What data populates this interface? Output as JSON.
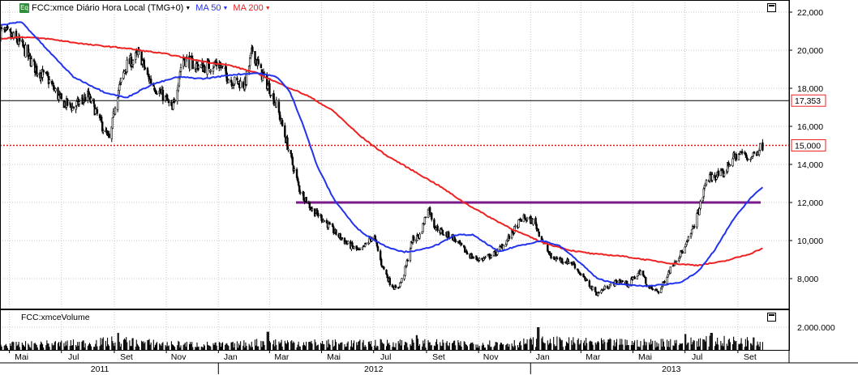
{
  "header": {
    "badge": "Eq",
    "instrument": "FCC:xmce Diário Hora Local (TMG+0)",
    "ma50_label": "MA 50",
    "ma200_label": "MA 200"
  },
  "volume_panel": {
    "title": "FCC:xmceVolume",
    "axis_label": "2.000.000"
  },
  "colors": {
    "price": "#000000",
    "up_candle": "#ffffff",
    "ma50": "#2233ee",
    "ma200": "#ee2222",
    "resistance_line": "#7a1a8a",
    "level_line": "#ee1111",
    "grid": "#c8c8c8",
    "last_price_label": "#ee2222"
  },
  "chart_data": [
    {
      "type": "candlestick",
      "title": "FCC:xmce Diário Hora Local (TMG+0)",
      "x_range": [
        "2011-04-20",
        "2013-10-31"
      ],
      "ylim": [
        6500,
        22500
      ],
      "y_ticks": [
        "8,000",
        "10,000",
        "12,000",
        "14,000",
        "16,000",
        "18,000",
        "20,000",
        "22,000"
      ],
      "x_month_ticks": [
        {
          "date": "2011-05-01",
          "label": "Mai"
        },
        {
          "date": "2011-07-01",
          "label": "Jul"
        },
        {
          "date": "2011-09-01",
          "label": "Set"
        },
        {
          "date": "2011-11-01",
          "label": "Nov"
        },
        {
          "date": "2012-01-01",
          "label": "Jan"
        },
        {
          "date": "2012-03-01",
          "label": "Mar"
        },
        {
          "date": "2012-05-01",
          "label": "Mai"
        },
        {
          "date": "2012-07-01",
          "label": "Jul"
        },
        {
          "date": "2012-09-01",
          "label": "Set"
        },
        {
          "date": "2012-11-01",
          "label": "Nov"
        },
        {
          "date": "2013-01-01",
          "label": "Jan"
        },
        {
          "date": "2013-03-01",
          "label": "Mar"
        },
        {
          "date": "2013-05-01",
          "label": "Mai"
        },
        {
          "date": "2013-07-01",
          "label": "Jul"
        },
        {
          "date": "2013-09-01",
          "label": "Set"
        }
      ],
      "x_year_labels": [
        {
          "date": "2011-08-15",
          "label": "2011"
        },
        {
          "date": "2012-07-01",
          "label": "2012"
        },
        {
          "date": "2013-06-15",
          "label": "2013"
        }
      ],
      "year_dividers": [
        "2012-01-01",
        "2013-01-01"
      ],
      "grid": true,
      "price_series": {
        "name": "FCC:xmce",
        "points": [
          [
            "2011-04-20",
            21000
          ],
          [
            "2011-05-01",
            20800
          ],
          [
            "2011-05-15",
            20300
          ],
          [
            "2011-06-01",
            19000
          ],
          [
            "2011-06-15",
            18500
          ],
          [
            "2011-07-01",
            17300
          ],
          [
            "2011-07-15",
            17000
          ],
          [
            "2011-08-01",
            17600
          ],
          [
            "2011-08-10",
            16800
          ],
          [
            "2011-08-20",
            15800
          ],
          [
            "2011-08-27",
            15200
          ],
          [
            "2011-09-03",
            17500
          ],
          [
            "2011-09-15",
            19200
          ],
          [
            "2011-10-01",
            19800
          ],
          [
            "2011-10-10",
            18600
          ],
          [
            "2011-10-20",
            18000
          ],
          [
            "2011-11-01",
            17400
          ],
          [
            "2011-11-08",
            16800
          ],
          [
            "2011-11-20",
            19600
          ],
          [
            "2011-12-01",
            19300
          ],
          [
            "2011-12-15",
            19100
          ],
          [
            "2012-01-01",
            19300
          ],
          [
            "2012-01-15",
            18400
          ],
          [
            "2012-02-01",
            18200
          ],
          [
            "2012-02-10",
            20000
          ],
          [
            "2012-02-20",
            18800
          ],
          [
            "2012-03-01",
            18000
          ],
          [
            "2012-03-10",
            17000
          ],
          [
            "2012-03-25",
            14500
          ],
          [
            "2012-04-05",
            12700
          ],
          [
            "2012-04-20",
            11600
          ],
          [
            "2012-05-01",
            11200
          ],
          [
            "2012-05-15",
            10500
          ],
          [
            "2012-06-01",
            9800
          ],
          [
            "2012-06-15",
            9400
          ],
          [
            "2012-07-01",
            10300
          ],
          [
            "2012-07-10",
            8800
          ],
          [
            "2012-07-20",
            7800
          ],
          [
            "2012-07-28",
            7400
          ],
          [
            "2012-08-05",
            8100
          ],
          [
            "2012-08-15",
            10000
          ],
          [
            "2012-08-25",
            10300
          ],
          [
            "2012-09-03",
            11800
          ],
          [
            "2012-09-10",
            10800
          ],
          [
            "2012-09-20",
            10400
          ],
          [
            "2012-10-01",
            10200
          ],
          [
            "2012-10-15",
            9500
          ],
          [
            "2012-10-25",
            9100
          ],
          [
            "2012-11-05",
            9000
          ],
          [
            "2012-11-20",
            9300
          ],
          [
            "2012-12-01",
            9800
          ],
          [
            "2012-12-15",
            10700
          ],
          [
            "2012-12-22",
            11200
          ],
          [
            "2013-01-05",
            11000
          ],
          [
            "2013-01-15",
            10000
          ],
          [
            "2013-01-25",
            9100
          ],
          [
            "2013-02-05",
            9000
          ],
          [
            "2013-02-20",
            8800
          ],
          [
            "2013-03-01",
            8200
          ],
          [
            "2013-03-10",
            7700
          ],
          [
            "2013-03-20",
            7200
          ],
          [
            "2013-04-01",
            7600
          ],
          [
            "2013-04-15",
            7900
          ],
          [
            "2013-04-25",
            7700
          ],
          [
            "2013-05-10",
            8400
          ],
          [
            "2013-05-20",
            7500
          ],
          [
            "2013-06-01",
            7300
          ],
          [
            "2013-06-10",
            8200
          ],
          [
            "2013-06-20",
            9000
          ],
          [
            "2013-07-01",
            9600
          ],
          [
            "2013-07-10",
            10600
          ],
          [
            "2013-07-20",
            12000
          ],
          [
            "2013-07-26",
            13200
          ],
          [
            "2013-08-05",
            13400
          ],
          [
            "2013-08-15",
            13500
          ],
          [
            "2013-08-25",
            14300
          ],
          [
            "2013-09-05",
            14600
          ],
          [
            "2013-09-15",
            14300
          ],
          [
            "2013-09-25",
            14800
          ],
          [
            "2013-09-30",
            15000
          ]
        ]
      },
      "ma50": {
        "name": "MA 50",
        "points": [
          [
            "2011-04-20",
            21300
          ],
          [
            "2011-05-15",
            21500
          ],
          [
            "2011-06-15",
            20000
          ],
          [
            "2011-07-15",
            18600
          ],
          [
            "2011-08-20",
            17800
          ],
          [
            "2011-09-15",
            17500
          ],
          [
            "2011-10-15",
            18200
          ],
          [
            "2011-11-15",
            18600
          ],
          [
            "2011-12-15",
            18500
          ],
          [
            "2012-01-15",
            18700
          ],
          [
            "2012-02-15",
            18800
          ],
          [
            "2012-03-10",
            18600
          ],
          [
            "2012-03-25",
            17800
          ],
          [
            "2012-04-10",
            16000
          ],
          [
            "2012-04-25",
            14000
          ],
          [
            "2012-05-15",
            12200
          ],
          [
            "2012-06-10",
            10700
          ],
          [
            "2012-06-25",
            10200
          ],
          [
            "2012-07-15",
            9700
          ],
          [
            "2012-08-05",
            9400
          ],
          [
            "2012-08-25",
            9500
          ],
          [
            "2012-09-15",
            9800
          ],
          [
            "2012-10-05",
            10300
          ],
          [
            "2012-10-25",
            10300
          ],
          [
            "2012-11-15",
            9700
          ],
          [
            "2012-11-25",
            9400
          ],
          [
            "2012-12-15",
            9700
          ],
          [
            "2013-01-15",
            10000
          ],
          [
            "2013-02-05",
            9700
          ],
          [
            "2013-03-01",
            8800
          ],
          [
            "2013-03-20",
            8000
          ],
          [
            "2013-04-15",
            7700
          ],
          [
            "2013-05-15",
            7600
          ],
          [
            "2013-06-10",
            7700
          ],
          [
            "2013-06-25",
            7800
          ],
          [
            "2013-07-15",
            8300
          ],
          [
            "2013-08-05",
            9500
          ],
          [
            "2013-08-25",
            11000
          ],
          [
            "2013-09-15",
            12200
          ],
          [
            "2013-09-30",
            12800
          ]
        ]
      },
      "ma200": {
        "name": "MA 200",
        "points": [
          [
            "2011-04-20",
            20600
          ],
          [
            "2011-05-15",
            20700
          ],
          [
            "2011-06-15",
            20600
          ],
          [
            "2011-08-01",
            20300
          ],
          [
            "2011-09-15",
            20100
          ],
          [
            "2011-11-01",
            19800
          ],
          [
            "2011-12-15",
            19400
          ],
          [
            "2012-01-15",
            19200
          ],
          [
            "2012-02-15",
            18800
          ],
          [
            "2012-03-15",
            18200
          ],
          [
            "2012-04-15",
            17600
          ],
          [
            "2012-05-15",
            16800
          ],
          [
            "2012-06-15",
            15500
          ],
          [
            "2012-07-15",
            14500
          ],
          [
            "2012-08-15",
            13700
          ],
          [
            "2012-09-15",
            12900
          ],
          [
            "2012-10-15",
            12000
          ],
          [
            "2012-11-15",
            11200
          ],
          [
            "2012-12-15",
            10500
          ],
          [
            "2013-01-15",
            9900
          ],
          [
            "2013-02-15",
            9500
          ],
          [
            "2013-03-15",
            9300
          ],
          [
            "2013-04-15",
            9200
          ],
          [
            "2013-05-15",
            9000
          ],
          [
            "2013-06-15",
            8800
          ],
          [
            "2013-07-15",
            8700
          ],
          [
            "2013-08-15",
            8900
          ],
          [
            "2013-09-15",
            9300
          ],
          [
            "2013-09-30",
            9600
          ]
        ]
      },
      "horizontal_lines": [
        {
          "name": "resistance",
          "value": 12000,
          "from": "2012-04-01",
          "to": "2013-10-15",
          "style": "solid"
        },
        {
          "name": "last-price",
          "value": 15000,
          "style": "dotted"
        },
        {
          "name": "reference",
          "value": 17353,
          "style": "solid"
        }
      ],
      "price_labels": [
        {
          "name": "reference",
          "value": 17353,
          "text": "17,353"
        },
        {
          "name": "last-price",
          "value": 15000,
          "text": "15,000"
        }
      ]
    },
    {
      "type": "bar",
      "title": "FCC:xmceVolume",
      "ylim": [
        0,
        3000000
      ],
      "y_ticks": [
        "2.000.000"
      ],
      "volume_profile": [
        [
          "2011-04-20",
          500000
        ],
        [
          "2011-08-01",
          700000
        ],
        [
          "2011-09-05",
          900000
        ],
        [
          "2011-11-01",
          600000
        ],
        [
          "2012-01-15",
          500000
        ],
        [
          "2012-02-25",
          800000
        ],
        [
          "2012-04-15",
          700000
        ],
        [
          "2012-06-15",
          650000
        ],
        [
          "2012-08-15",
          750000
        ],
        [
          "2012-10-15",
          600000
        ],
        [
          "2012-12-20",
          700000
        ],
        [
          "2013-01-10",
          900000
        ],
        [
          "2013-03-15",
          750000
        ],
        [
          "2013-05-15",
          700000
        ],
        [
          "2013-07-15",
          900000
        ],
        [
          "2013-09-30",
          850000
        ]
      ],
      "volume_spikes": [
        [
          "2011-09-05",
          1500000
        ],
        [
          "2012-02-28",
          1600000
        ],
        [
          "2012-08-20",
          1300000
        ],
        [
          "2013-01-10",
          2000000
        ],
        [
          "2013-07-01",
          1400000
        ],
        [
          "2013-08-01",
          1500000
        ],
        [
          "2013-09-20",
          1100000
        ]
      ]
    }
  ]
}
